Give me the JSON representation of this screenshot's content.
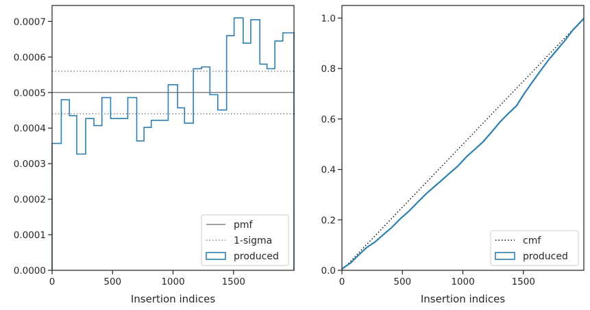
{
  "colors": {
    "produced": "#2a7fb0",
    "reference": "#808080",
    "cmf": "#000000",
    "axis": "#262626",
    "legend_border": "#cccccc"
  },
  "chart_data": [
    {
      "type": "step",
      "xlabel": "Insertion indices",
      "ylabel": "",
      "xlim": [
        0,
        2000
      ],
      "ylim": [
        0,
        0.000745
      ],
      "xticks": [
        0,
        500,
        1000,
        1500
      ],
      "xtick_labels": [
        "0",
        "500",
        "1000",
        "1500"
      ],
      "yticks": [
        0,
        0.0001,
        0.0002,
        0.0003,
        0.0004,
        0.0005,
        0.0006,
        0.0007
      ],
      "ytick_labels": [
        "0.0000",
        "0.0001",
        "0.0002",
        "0.0003",
        "0.0004",
        "0.0005",
        "0.0006",
        "0.0007"
      ],
      "legend_position": "lower right",
      "hlines": [
        {
          "name": "pmf",
          "y": 0.0005,
          "style": "solid"
        },
        {
          "name": "1-sigma",
          "y": 0.00056,
          "style": "dotted"
        },
        {
          "name": "1-sigma",
          "y": 0.00044,
          "style": "dotted"
        }
      ],
      "series": [
        {
          "name": "produced",
          "bin_edges": [
            0,
            76,
            143,
            204,
            278,
            346,
            412,
            484,
            560,
            626,
            700,
            760,
            820,
            900,
            960,
            1038,
            1095,
            1168,
            1235,
            1305,
            1370,
            1443,
            1505,
            1580,
            1643,
            1718,
            1777,
            1842,
            1908,
            2000
          ],
          "values": [
            0.000357,
            0.00048,
            0.000435,
            0.000327,
            0.000427,
            0.000407,
            0.000486,
            0.000427,
            0.000427,
            0.000486,
            0.000364,
            0.000402,
            0.000422,
            0.000422,
            0.000522,
            0.000457,
            0.000414,
            0.000567,
            0.000572,
            0.000494,
            0.000451,
            0.00066,
            0.00071,
            0.000639,
            0.000705,
            0.00058,
            0.000567,
            0.000645,
            0.000668
          ]
        }
      ]
    },
    {
      "type": "line",
      "xlabel": "Insertion indices",
      "ylabel": "",
      "xlim": [
        0,
        2000
      ],
      "ylim": [
        0,
        1.05
      ],
      "xticks": [
        0,
        500,
        1000,
        1500
      ],
      "xtick_labels": [
        "0",
        "500",
        "1000",
        "1500"
      ],
      "yticks": [
        0,
        0.2,
        0.4,
        0.6,
        0.8,
        1.0
      ],
      "ytick_labels": [
        "0.0",
        "0.2",
        "0.4",
        "0.6",
        "0.8",
        "1.0"
      ],
      "legend_position": "lower right",
      "series": [
        {
          "name": "cmf",
          "style": "dotted",
          "x": [
            0,
            2000
          ],
          "y": [
            0,
            1.0
          ]
        },
        {
          "name": "produced",
          "style": "solid",
          "x": [
            0,
            76,
            143,
            204,
            278,
            346,
            412,
            484,
            560,
            626,
            700,
            760,
            820,
            900,
            960,
            1038,
            1095,
            1168,
            1235,
            1305,
            1370,
            1443,
            1505,
            1580,
            1643,
            1718,
            1777,
            1842,
            1908,
            2000
          ],
          "y": [
            0.006,
            0.031,
            0.063,
            0.09,
            0.114,
            0.143,
            0.17,
            0.205,
            0.237,
            0.27,
            0.305,
            0.33,
            0.355,
            0.389,
            0.414,
            0.454,
            0.478,
            0.51,
            0.547,
            0.587,
            0.619,
            0.652,
            0.699,
            0.75,
            0.792,
            0.84,
            0.873,
            0.91,
            0.952,
            0.998
          ]
        }
      ]
    }
  ]
}
